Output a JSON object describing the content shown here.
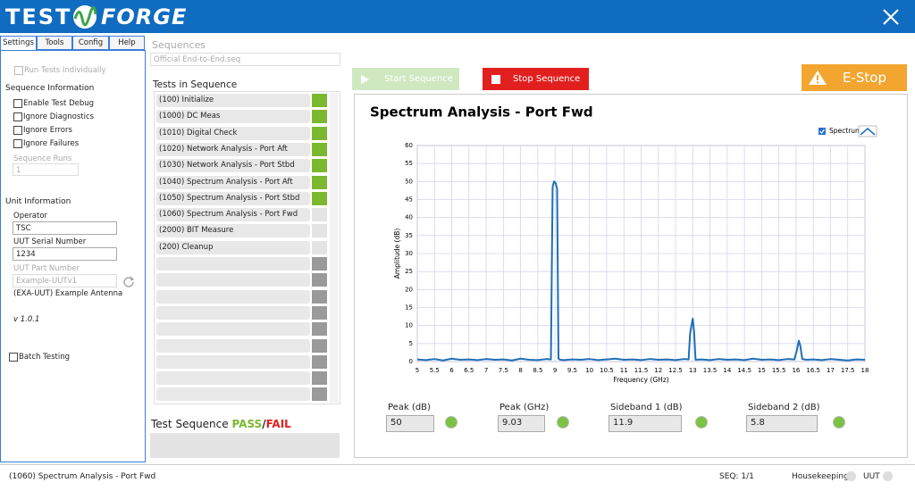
{
  "header": {
    "logo_left": "TEST",
    "logo_right": "FORGE"
  },
  "tabs": [
    "Settings",
    "Tools",
    "Config",
    "Help"
  ],
  "settings": {
    "run_individually": "Run Tests Individually",
    "sequence_information": "Sequence Information",
    "options": [
      "Enable Test Debug",
      "Ignore Diagnostics",
      "Ignore Errors",
      "Ignore Failures"
    ],
    "sequence_runs_label": "Sequence Runs",
    "sequence_runs": "1",
    "unit_information": "Unit Information",
    "operator_label": "Operator",
    "operator": "TSC",
    "serial_label": "UUT Serial Number",
    "serial": "1234",
    "part_label": "UUT Part Number",
    "part": "Example-UUTv1",
    "part_description": "(EXA-UUT) Example Antenna",
    "version": "v 1.0.1",
    "batch_testing": "Batch Testing"
  },
  "sequence": {
    "label": "Sequences",
    "file": "Official End-to-End.seq",
    "tests_label": "Tests in Sequence",
    "tests": [
      {
        "name": "(100) Initialize",
        "color": "#7cb82f"
      },
      {
        "name": "(1000) DC Meas",
        "color": "#7cb82f"
      },
      {
        "name": "(1010) Digital Check",
        "color": "#7cb82f"
      },
      {
        "name": "(1020) Network Analysis - Port Aft",
        "color": "#7cb82f"
      },
      {
        "name": "(1030) Network Analysis - Port Stbd",
        "color": "#7cb82f"
      },
      {
        "name": "(1040) Spectrum Analysis - Port Aft",
        "color": "#7cb82f"
      },
      {
        "name": "(1050) Spectrum Analysis - Port Stbd",
        "color": "#7cb82f"
      },
      {
        "name": "(1060) Spectrum Analysis - Port Fwd",
        "color": "#e4e4e4"
      },
      {
        "name": "(2000) BIT Measure",
        "color": "#e4e4e4"
      },
      {
        "name": "(200) Cleanup",
        "color": "#e4e4e4"
      }
    ],
    "result_label": "Test Sequence",
    "pass": "PASS",
    "separator": "/",
    "fail": "FAIL"
  },
  "controls": {
    "start": "Start Sequence",
    "stop": "Stop Sequence",
    "estop": "E-Stop"
  },
  "chart_data": {
    "type": "line",
    "title": "Spectrum Analysis - Port Fwd",
    "x_label": "Frequency (GHz)",
    "y_label": "Amplitude (dB)",
    "x": [
      5,
      5.25,
      5.5,
      5.75,
      6,
      6.25,
      6.5,
      6.75,
      7,
      7.25,
      7.5,
      7.75,
      8,
      8.25,
      8.5,
      8.75,
      8.88,
      8.93,
      8.97,
      9.02,
      9.06,
      9.1,
      9.15,
      9.25,
      9.5,
      9.75,
      10,
      10.25,
      10.5,
      10.75,
      11,
      11.25,
      11.5,
      11.75,
      12,
      12.25,
      12.5,
      12.75,
      12.88,
      12.92,
      12.96,
      13.0,
      13.04,
      13.08,
      13.25,
      13.5,
      13.75,
      14,
      14.25,
      14.5,
      14.75,
      15,
      15.25,
      15.5,
      15.75,
      15.95,
      16.02,
      16.08,
      16.12,
      16.18,
      16.3,
      16.5,
      16.75,
      17,
      17.25,
      17.5,
      17.75,
      18
    ],
    "series": [
      {
        "name": "Spectrum",
        "color": "#1f6fb5",
        "values": [
          0.6,
          0.4,
          0.7,
          0.3,
          0.8,
          0.5,
          0.6,
          0.4,
          0.7,
          0.5,
          0.6,
          0.3,
          0.8,
          0.5,
          0.4,
          0.7,
          0.6,
          48.5,
          50,
          49.5,
          48,
          0.8,
          0.5,
          0.4,
          0.6,
          0.5,
          0.7,
          0.4,
          0.6,
          0.8,
          0.5,
          0.6,
          0.4,
          0.7,
          0.5,
          0.6,
          0.4,
          0.7,
          0.6,
          7.5,
          10,
          11.9,
          8,
          0.5,
          0.6,
          0.4,
          0.7,
          0.5,
          0.6,
          0.4,
          0.8,
          0.5,
          0.6,
          0.4,
          0.7,
          0.6,
          3,
          5.8,
          4.5,
          0.7,
          0.5,
          0.6,
          0.4,
          0.7,
          0.5,
          0.3,
          0.6,
          0.5
        ]
      }
    ],
    "xlim": [
      5,
      18
    ],
    "ylim": [
      0,
      60
    ],
    "xticks": [
      5,
      5.5,
      6,
      6.5,
      7,
      7.5,
      8,
      8.5,
      9,
      9.5,
      10,
      10.5,
      11,
      11.5,
      12,
      12.5,
      13,
      13.5,
      14,
      14.5,
      15,
      15.5,
      16,
      16.5,
      17,
      17.5,
      18
    ],
    "yticks": [
      0,
      5,
      10,
      15,
      20,
      25,
      30,
      35,
      40,
      45,
      50,
      55,
      60
    ],
    "grid": true,
    "legend": "upper right"
  },
  "readouts": [
    {
      "label": "Peak (dB)",
      "value": "50",
      "indicator": "#7cc243"
    },
    {
      "label": "Peak (GHz)",
      "value": "9.03",
      "indicator": "#7cc243"
    },
    {
      "label": "Sideband 1 (dB)",
      "value": "11.9",
      "indicator": "#7cc243"
    },
    {
      "label": "Sideband 2 (dB)",
      "value": "5.8",
      "indicator": "#7cc243"
    }
  ],
  "status_bar": {
    "current_test": "(1060) Spectrum Analysis - Port Fwd",
    "seq": "SEQ: 1/1",
    "housekeeping": "Housekeeping",
    "uut": "UUT"
  }
}
